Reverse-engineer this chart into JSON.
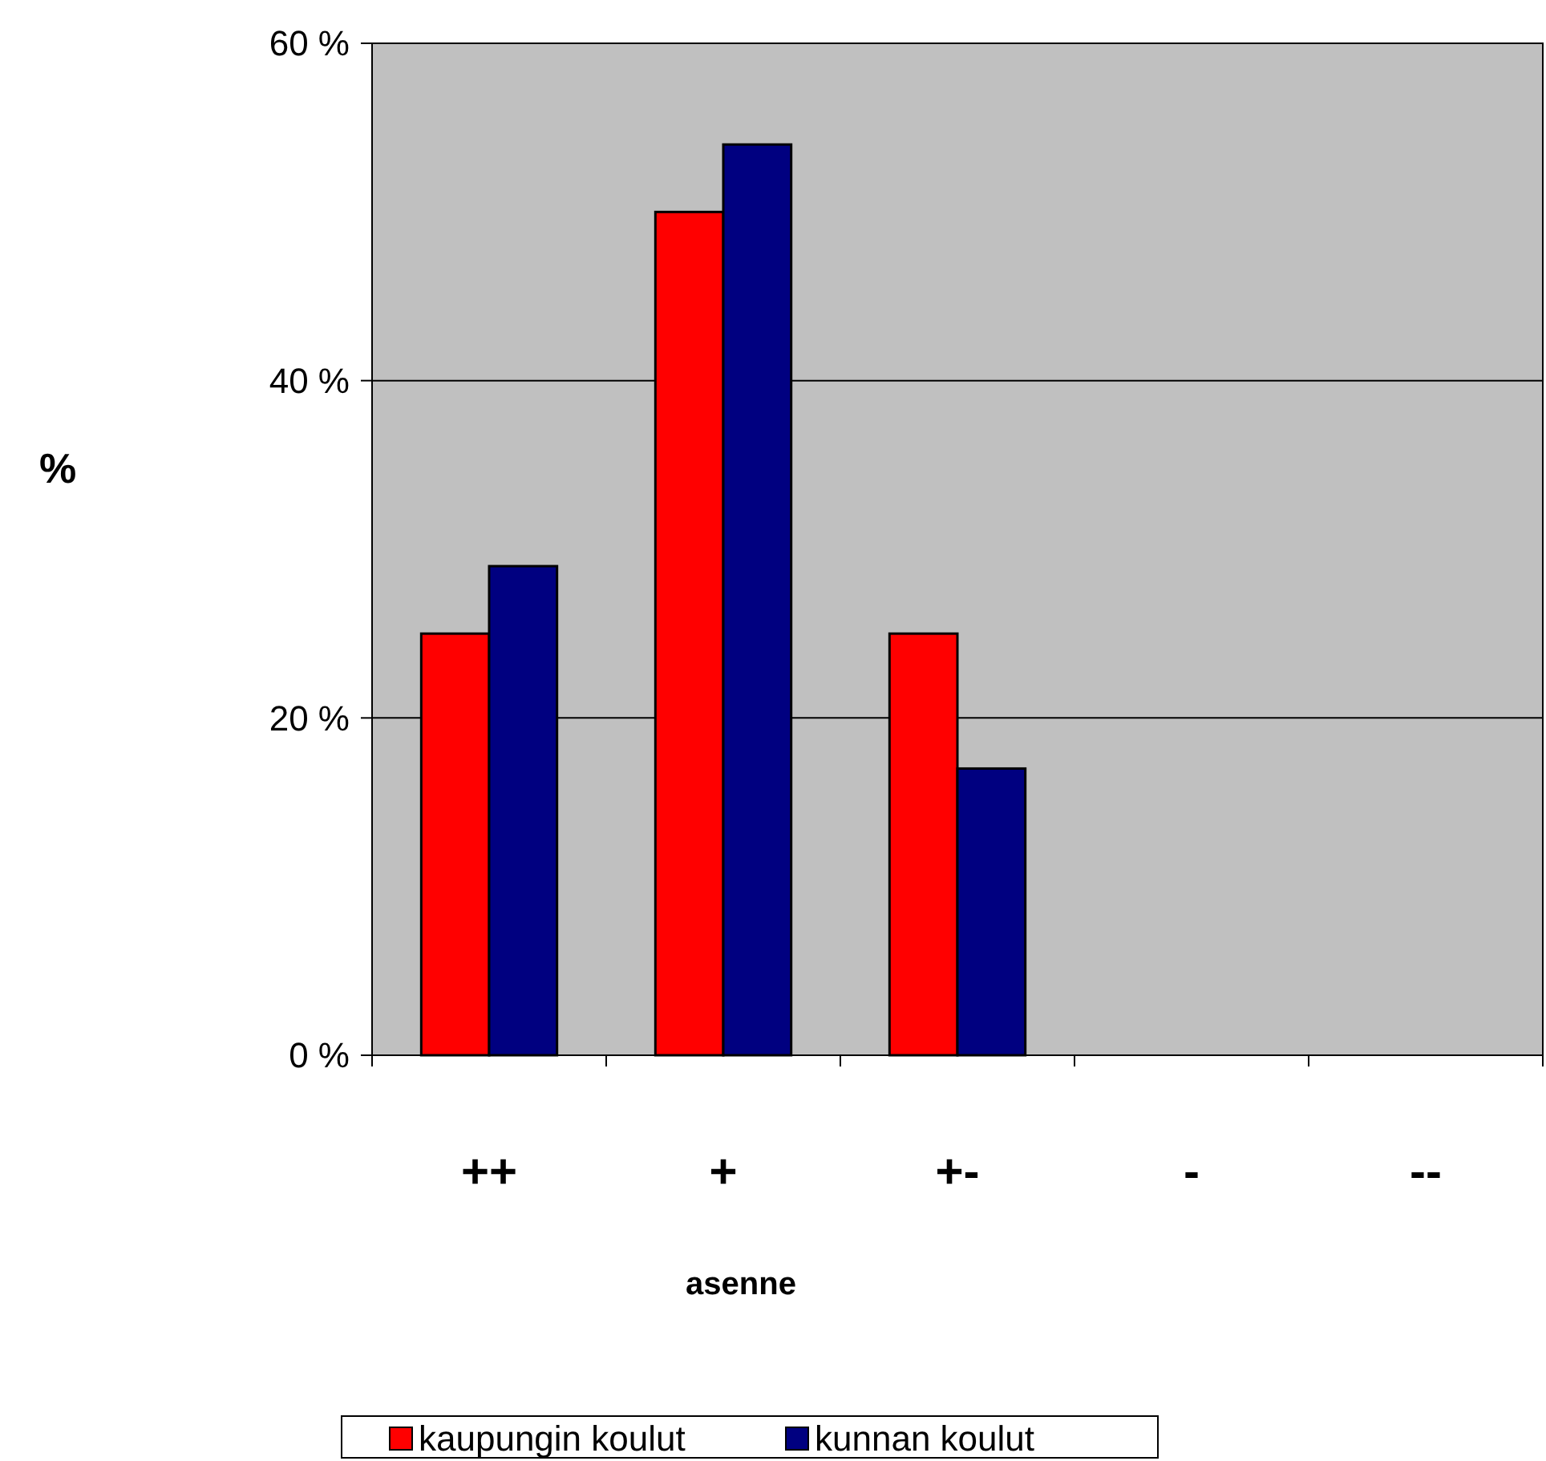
{
  "chart_data": {
    "type": "bar",
    "xlabel": "asenne",
    "ylabel": "%",
    "categories": [
      "++",
      "+",
      "+-",
      "-",
      "--"
    ],
    "series": [
      {
        "name": "kaupungin koulut",
        "color": "#ff0000",
        "values": [
          25,
          50,
          25,
          0,
          0
        ]
      },
      {
        "name": "kunnan koulut",
        "color": "#000080",
        "values": [
          29,
          54,
          17,
          0,
          0
        ]
      }
    ],
    "ylim": [
      0,
      60
    ],
    "yticks": [
      {
        "value": 0,
        "label": "0 %"
      },
      {
        "value": 20,
        "label": "20 %"
      },
      {
        "value": 40,
        "label": "40 %"
      },
      {
        "value": 60,
        "label": "60 %"
      }
    ],
    "grid": "y",
    "legend": "bottom"
  }
}
